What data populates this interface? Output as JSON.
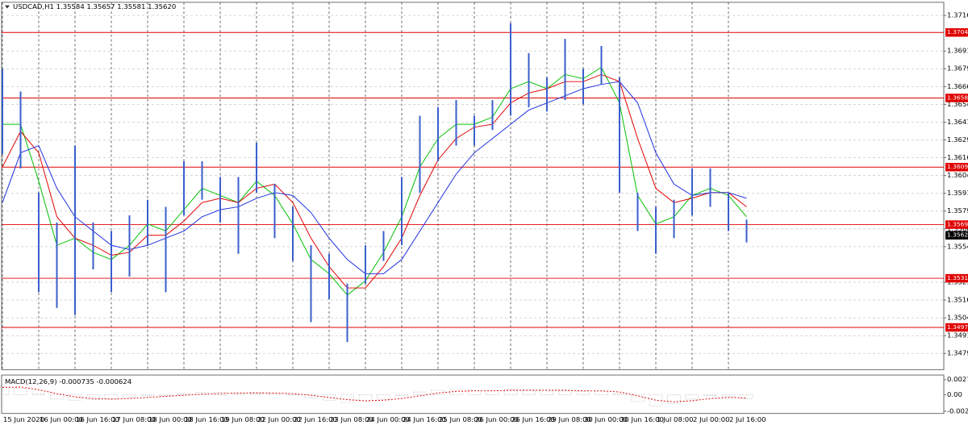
{
  "chart_data": [
    {
      "type": "ohlc",
      "title": "USDCAD,H1  1.35584 1.35657 1.35581 1.35620",
      "categories": [
        "15 Jun 2020",
        null,
        "16 Jun 00:00",
        null,
        "16 Jun 16:00",
        null,
        "17 Jun 08:00",
        null,
        "18 Jun 00:00",
        null,
        "18 Jun 16:00",
        null,
        "19 Jun 08:00",
        null,
        "22 Jun 00:00",
        null,
        "22 Jun 16:00",
        null,
        "23 Jun 08:00",
        null,
        "24 Jun 00:00",
        null,
        "24 Jun 16:00",
        null,
        "25 Jun 08:00",
        null,
        "26 Jun 00:00",
        null,
        "26 Jun 16:00",
        null,
        "29 Jun 08:00",
        null,
        "30 Jun 00:00",
        null,
        "30 Jun 16:00",
        null,
        "1 Jul 08:00",
        null,
        "2 Jul 00:00",
        null,
        "2 Jul 16:00",
        null
      ],
      "high": [
        1.3679,
        1.3663,
        1.3592,
        1.3571,
        1.3625,
        1.3571,
        1.3565,
        1.3576,
        1.3587,
        1.3582,
        1.3614,
        1.3614,
        1.3603,
        1.3603,
        1.3627,
        1.3598,
        1.3582,
        1.3555,
        1.3549,
        1.3528,
        1.3555,
        1.3565,
        1.3603,
        1.3646,
        1.3652,
        1.3657,
        1.3646,
        1.3657,
        1.3711,
        1.369,
        1.3673,
        1.37,
        1.3679,
        1.3695,
        1.3673,
        1.3592,
        1.3582,
        1.3587,
        1.3609,
        1.3609,
        1.3592,
        1.3573
      ],
      "low": [
        1.3619,
        1.3609,
        1.3522,
        1.3511,
        1.3506,
        1.3538,
        1.3522,
        1.3533,
        1.3555,
        1.3522,
        1.3576,
        1.3587,
        1.3571,
        1.3549,
        1.3592,
        1.356,
        1.3544,
        1.3501,
        1.3517,
        1.3487,
        1.3528,
        1.3544,
        1.3555,
        1.3592,
        1.3614,
        1.3625,
        1.3625,
        1.3636,
        1.3646,
        1.3652,
        1.3649,
        1.3657,
        1.3654,
        1.3668,
        1.3592,
        1.3565,
        1.3549,
        1.356,
        1.3576,
        1.3582,
        1.3565,
        1.3557
      ],
      "color": "#3a5fcd",
      "moving_averages": [
        {
          "color": "#00c000",
          "values": [
            1.364,
            1.364,
            1.36,
            1.3555,
            1.356,
            1.355,
            1.3545,
            1.3555,
            1.357,
            1.3565,
            1.358,
            1.3595,
            1.359,
            1.3585,
            1.36,
            1.359,
            1.357,
            1.3545,
            1.3535,
            1.352,
            1.353,
            1.355,
            1.3575,
            1.361,
            1.363,
            1.364,
            1.364,
            1.3645,
            1.3665,
            1.367,
            1.3665,
            1.3675,
            1.3672,
            1.368,
            1.3655,
            1.359,
            1.357,
            1.3575,
            1.359,
            1.3595,
            1.359,
            1.3575
          ]
        },
        {
          "color": "#e00000",
          "values": [
            1.361,
            1.3635,
            1.362,
            1.3575,
            1.356,
            1.3555,
            1.3548,
            1.355,
            1.3562,
            1.3562,
            1.3572,
            1.3585,
            1.3588,
            1.3585,
            1.3595,
            1.3598,
            1.3585,
            1.356,
            1.354,
            1.3525,
            1.3525,
            1.354,
            1.356,
            1.359,
            1.3615,
            1.363,
            1.3638,
            1.364,
            1.3655,
            1.3662,
            1.3665,
            1.367,
            1.367,
            1.3675,
            1.367,
            1.363,
            1.3595,
            1.3585,
            1.3588,
            1.3592,
            1.3592,
            1.3582
          ]
        },
        {
          "color": "#2030e0",
          "values": [
            1.3585,
            1.362,
            1.3625,
            1.3595,
            1.3575,
            1.3565,
            1.3555,
            1.3552,
            1.3555,
            1.356,
            1.3565,
            1.3575,
            1.358,
            1.3582,
            1.3588,
            1.3592,
            1.359,
            1.3578,
            1.356,
            1.3545,
            1.3535,
            1.3535,
            1.3545,
            1.3565,
            1.3585,
            1.3605,
            1.362,
            1.363,
            1.364,
            1.365,
            1.3655,
            1.366,
            1.3665,
            1.3668,
            1.367,
            1.3655,
            1.362,
            1.3598,
            1.359,
            1.3592,
            1.3592,
            1.3588
          ]
        }
      ],
      "levels": [
        1.37045,
        1.36585,
        1.36099,
        1.35695,
        1.35318,
        1.34973
      ],
      "level_color": "#e00000",
      "last_price": {
        "value": 1.3562,
        "label": "1.35620"
      },
      "ylim": [
        1.34676,
        1.37257
      ],
      "yticks": [
        1.37165,
        1.36915,
        {
          "value": 1.3679,
          "label": "1.36790"
        },
        1.36665,
        {
          "value": 1.3654,
          "label": "1.36540"
        },
        1.36415,
        {
          "value": 1.3629,
          "label": "1.36290"
        },
        1.36165,
        {
          "value": 1.3604,
          "label": "1.36040"
        },
        1.35915,
        {
          "value": 1.3579,
          "label": "1.35790"
        },
        1.35665,
        {
          "value": 1.3554,
          "label": "1.35540"
        },
        {
          "value": 1.3529,
          "label": "1.35290"
        },
        1.35165,
        {
          "value": 1.3504,
          "label": "1.35040"
        },
        1.34915,
        {
          "value": 1.3479,
          "label": "1.34790"
        }
      ],
      "grid": true
    },
    {
      "type": "macd",
      "title": "MACD(12,26,9) -0.000735 -0.000624",
      "values": [
        0.0015,
        0.0012,
        0.0002,
        -0.0008,
        -0.001,
        -0.0009,
        -0.0008,
        -0.0005,
        -0.0002,
        -0.0002,
        0.0002,
        0.0004,
        0.0004,
        0.0003,
        0.0004,
        0.0003,
        0,
        -0.0006,
        -0.001,
        -0.0014,
        -0.0012,
        -0.0008,
        -0.0002,
        0.0005,
        0.0008,
        0.0009,
        0.0008,
        0.0007,
        0.0009,
        0.0009,
        0.0008,
        0.0007,
        0.0006,
        0.0006,
        0.0002,
        -0.0012,
        -0.002,
        -0.0016,
        -0.0008,
        -0.0002,
        -0.0003,
        -0.0007
      ],
      "signal": [
        0.0013,
        0.0014,
        0.0009,
        0.0002,
        -0.0004,
        -0.0007,
        -0.0008,
        -0.0007,
        -0.0005,
        -0.0003,
        -0.0001,
        0.0001,
        0.0002,
        0.0003,
        0.0003,
        0.0003,
        0.0002,
        -0.0001,
        -0.0005,
        -0.0009,
        -0.0011,
        -0.001,
        -0.0007,
        -0.0002,
        0.0003,
        0.0006,
        0.0007,
        0.0007,
        0.0008,
        0.0008,
        0.0008,
        0.0008,
        0.0007,
        0.0007,
        0.0005,
        -0.0002,
        -0.001,
        -0.0013,
        -0.0011,
        -0.0007,
        -0.0005,
        -0.0006
      ],
      "color": "#a0a0a0",
      "signal_color": "#e00000",
      "ylim": [
        -0.00299,
        0.002736
      ],
      "yticks": [
        0.002736,
        {
          "value": 0,
          "label": "0.00"
        },
        -0.00299
      ]
    }
  ]
}
